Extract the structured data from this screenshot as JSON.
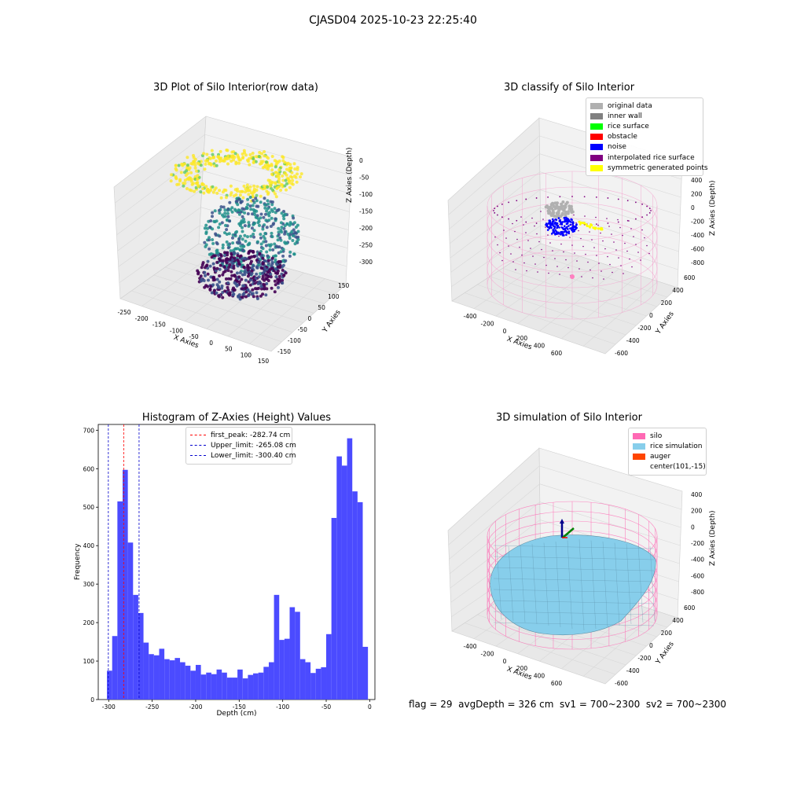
{
  "figure": {
    "suptitle": "CJASD04 2025-10-23 22:25:40",
    "status_text": "flag = 29  avgDepth = 326 cm  sv1 = 700~2300  sv2 = 700~2300"
  },
  "panels": [
    {
      "title": "3D Plot of Silo Interior(row data)",
      "xlabel": "X Axies",
      "ylabel": "Y Axies",
      "zlabel": "Z Axies (Depth)",
      "xticks": [
        "-250",
        "-200",
        "-150",
        "-100",
        "-50",
        "0",
        "50",
        "100",
        "150"
      ],
      "yticks": [
        "-150",
        "-100",
        "-50",
        "0",
        "50",
        "100",
        "150"
      ],
      "zticks": [
        "0",
        "-50",
        "-100",
        "-150",
        "-200",
        "-250",
        "-300"
      ],
      "colormap": [
        "#440154",
        "#3b528b",
        "#21918c",
        "#5ec962",
        "#fde725"
      ]
    },
    {
      "title": "3D classify of Silo Interior",
      "xlabel": "X Axies",
      "ylabel": "Y Axies",
      "zlabel": "Z Axies (Depth)",
      "xticks": [
        "-400",
        "-200",
        "0",
        "200",
        "400",
        "600"
      ],
      "yticks": [
        "-600",
        "-400",
        "-200",
        "0",
        "200",
        "400",
        "600"
      ],
      "zticks": [
        "400",
        "200",
        "0",
        "-200",
        "-400",
        "-600",
        "-800"
      ],
      "legend": [
        {
          "label": "original data",
          "color": "#b0b0b0"
        },
        {
          "label": "inner wall",
          "color": "#808080"
        },
        {
          "label": "rice surface",
          "color": "#00ff00"
        },
        {
          "label": "obstacle",
          "color": "#ff0000"
        },
        {
          "label": "noise",
          "color": "#0000ff"
        },
        {
          "label": "interpolated rice surface",
          "color": "#800080"
        },
        {
          "label": "symmetric generated points",
          "color": "#ffff00"
        }
      ]
    },
    {
      "title": "3D simulation of Silo Interior",
      "xlabel": "X Axies",
      "ylabel": "Y Axies",
      "zlabel": "Z Axies (Depth)",
      "xticks": [
        "-400",
        "-200",
        "0",
        "200",
        "400",
        "600"
      ],
      "yticks": [
        "-600",
        "-400",
        "-200",
        "0",
        "200",
        "400",
        "600"
      ],
      "zticks": [
        "400",
        "200",
        "0",
        "-200",
        "-400",
        "-600",
        "-800"
      ],
      "legend": [
        {
          "label": "silo",
          "color": "#ff69b4"
        },
        {
          "label": "rice simulation",
          "color": "#87ceeb"
        },
        {
          "label": "auger",
          "color": "#ff4500"
        },
        {
          "label": "center(101,-15)",
          "color": ""
        }
      ]
    }
  ],
  "chart_data": [
    {
      "type": "histogram",
      "title": "Histogram of Z-Axies (Height) Values",
      "xlabel": "Depth (cm)",
      "ylabel": "Frequency",
      "xlim": [
        -312,
        6
      ],
      "ylim": [
        0,
        715
      ],
      "xticks": [
        -300,
        -250,
        -200,
        -150,
        -100,
        -50,
        0
      ],
      "yticks": [
        0,
        100,
        200,
        300,
        400,
        500,
        600,
        700
      ],
      "bar_color": "#4b4bff",
      "bin_start": -302,
      "bin_width": 6,
      "values": [
        75,
        165,
        515,
        597,
        408,
        272,
        225,
        148,
        118,
        115,
        132,
        105,
        102,
        108,
        97,
        88,
        75,
        90,
        65,
        70,
        66,
        78,
        70,
        57,
        57,
        78,
        55,
        64,
        68,
        70,
        85,
        97,
        272,
        155,
        158,
        240,
        228,
        105,
        97,
        69,
        80,
        84,
        170,
        472,
        632,
        608,
        679,
        541,
        513,
        137
      ],
      "vlines": [
        {
          "label": "first_peak: -282.74 cm",
          "x": -282.74,
          "color": "#ff0000"
        },
        {
          "label": "Upper_limit: -265.08 cm",
          "x": -265.08,
          "color": "#0000cc"
        },
        {
          "label": "Lower_limit: -300.40 cm",
          "x": -300.4,
          "color": "#0000cc"
        }
      ]
    }
  ]
}
